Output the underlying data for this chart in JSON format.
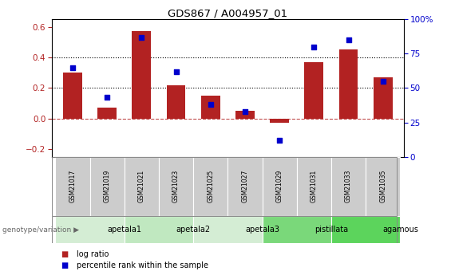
{
  "title": "GDS867 / A004957_01",
  "samples": [
    "GSM21017",
    "GSM21019",
    "GSM21021",
    "GSM21023",
    "GSM21025",
    "GSM21027",
    "GSM21029",
    "GSM21031",
    "GSM21033",
    "GSM21035"
  ],
  "log_ratio": [
    0.3,
    0.07,
    0.57,
    0.22,
    0.15,
    0.05,
    -0.03,
    0.37,
    0.45,
    0.27
  ],
  "percentile_rank": [
    65,
    43,
    87,
    62,
    38,
    33,
    12,
    80,
    85,
    55
  ],
  "bar_color": "#b22222",
  "dot_color": "#0000cc",
  "ylim_left": [
    -0.25,
    0.65
  ],
  "ylim_right": [
    0,
    100
  ],
  "yticks_left": [
    -0.2,
    0.0,
    0.2,
    0.4,
    0.6
  ],
  "yticks_right": [
    0,
    25,
    50,
    75,
    100
  ],
  "ytick_labels_right": [
    "0",
    "25",
    "50",
    "75",
    "100%"
  ],
  "hlines": [
    0.2,
    0.4
  ],
  "groups": [
    {
      "label": "apetala1",
      "start": 0,
      "end": 2,
      "color": "#d4edd4"
    },
    {
      "label": "apetala2",
      "start": 2,
      "end": 4,
      "color": "#c0e8c0"
    },
    {
      "label": "apetala3",
      "start": 4,
      "end": 6,
      "color": "#d4edd4"
    },
    {
      "label": "pistillata",
      "start": 6,
      "end": 8,
      "color": "#7ad87a"
    },
    {
      "label": "agamous",
      "start": 8,
      "end": 10,
      "color": "#5cd45c"
    }
  ],
  "legend_bar_label": "log ratio",
  "legend_dot_label": "percentile rank within the sample",
  "genotype_label": "genotype/variation",
  "background_color": "#ffffff",
  "sample_box_color": "#cccccc"
}
